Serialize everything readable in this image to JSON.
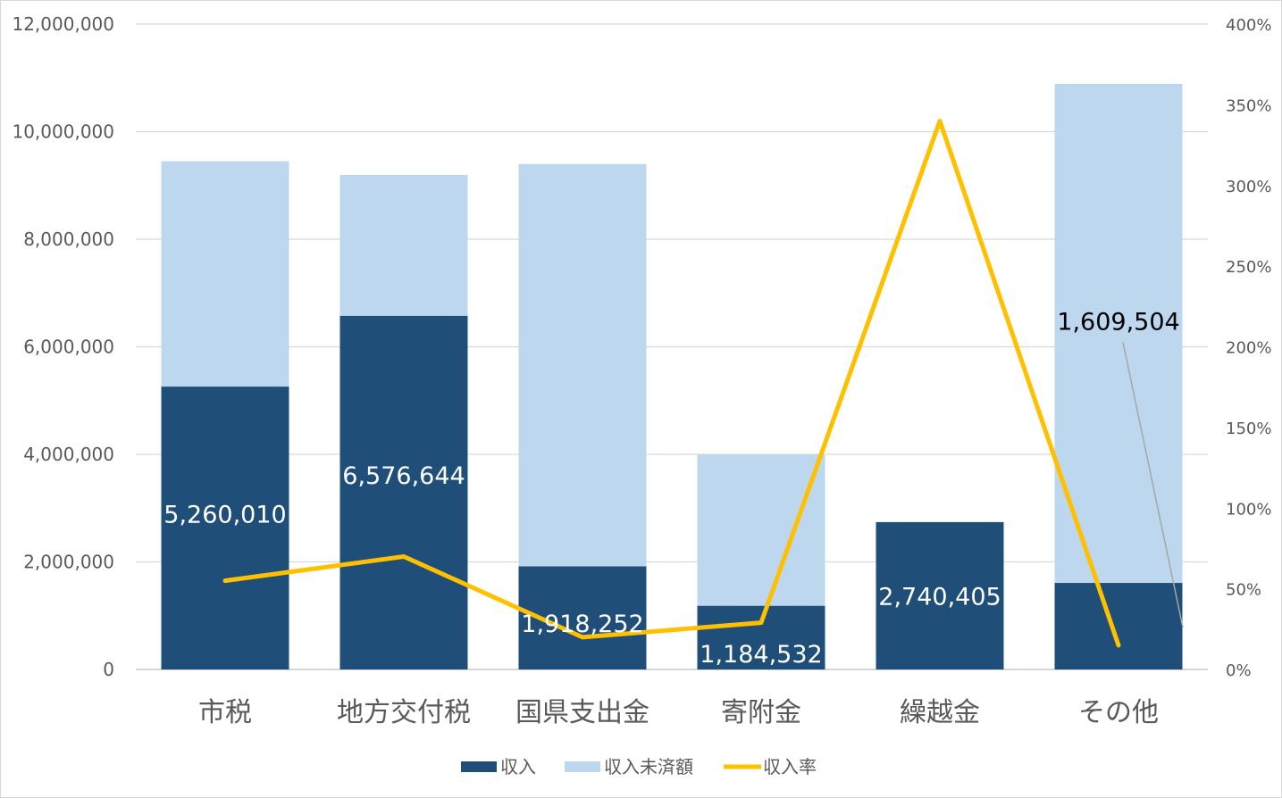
{
  "chart_data": {
    "type": "bar",
    "stacked": true,
    "categories": [
      "市税",
      "地方交付税",
      "国県支出金",
      "寄附金",
      "繰越金",
      "その他"
    ],
    "series": [
      {
        "name": "収入",
        "type": "bar",
        "axis": "left",
        "color": "#1f4e79",
        "values": [
          5260010,
          6576644,
          1918252,
          1184532,
          2740405,
          1609504
        ]
      },
      {
        "name": "収入未済額",
        "type": "bar",
        "axis": "left",
        "color": "#bdd7ee",
        "values": [
          4190000,
          2620000,
          7480000,
          2810000,
          0,
          9280000
        ]
      },
      {
        "name": "収入率",
        "type": "line",
        "axis": "right",
        "color": "#ffc000",
        "values": [
          55,
          70,
          20,
          29,
          340,
          15
        ]
      }
    ],
    "data_labels": [
      "5,260,010",
      "6,576,644",
      "1,918,252",
      "1,184,532",
      "2,740,405",
      "1,609,504"
    ],
    "left_axis": {
      "ylim": [
        0,
        12000000
      ],
      "ticks": [
        0,
        2000000,
        4000000,
        6000000,
        8000000,
        10000000,
        12000000
      ],
      "tick_labels": [
        "0",
        "2,000,000",
        "4,000,000",
        "6,000,000",
        "8,000,000",
        "10,000,000",
        "12,000,000"
      ]
    },
    "right_axis": {
      "ylim": [
        0,
        400
      ],
      "ticks": [
        0,
        50,
        100,
        150,
        200,
        250,
        300,
        350,
        400
      ],
      "tick_labels": [
        "0%",
        "50%",
        "100%",
        "150%",
        "200%",
        "250%",
        "300%",
        "350%",
        "400%"
      ]
    },
    "grid": true,
    "legend_position": "bottom",
    "title": "",
    "xlabel": "",
    "ylabel": ""
  }
}
